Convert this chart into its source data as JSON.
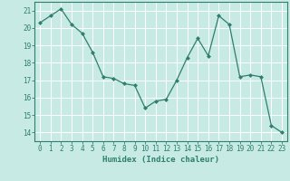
{
  "x": [
    0,
    1,
    2,
    3,
    4,
    5,
    6,
    7,
    8,
    9,
    10,
    11,
    12,
    13,
    14,
    15,
    16,
    17,
    18,
    19,
    20,
    21,
    22,
    23
  ],
  "y": [
    20.3,
    20.7,
    21.1,
    20.2,
    19.7,
    18.6,
    17.2,
    17.1,
    16.8,
    16.7,
    15.4,
    15.8,
    15.9,
    17.0,
    18.3,
    19.4,
    18.4,
    20.7,
    20.2,
    17.2,
    17.3,
    17.2,
    14.4,
    14.0
  ],
  "line_color": "#2e7f6e",
  "marker": "D",
  "marker_size": 2.0,
  "background_color": "#c8eae5",
  "grid_color": "#ffffff",
  "xlabel": "Humidex (Indice chaleur)",
  "ylim": [
    13.5,
    21.5
  ],
  "xlim": [
    -0.5,
    23.5
  ],
  "yticks": [
    14,
    15,
    16,
    17,
    18,
    19,
    20,
    21
  ],
  "xticks": [
    0,
    1,
    2,
    3,
    4,
    5,
    6,
    7,
    8,
    9,
    10,
    11,
    12,
    13,
    14,
    15,
    16,
    17,
    18,
    19,
    20,
    21,
    22,
    23
  ],
  "tick_color": "#2e7f6e",
  "label_color": "#2e7f6e",
  "spine_color": "#2e7f6e",
  "tick_fontsize": 5.5,
  "xlabel_fontsize": 6.5
}
